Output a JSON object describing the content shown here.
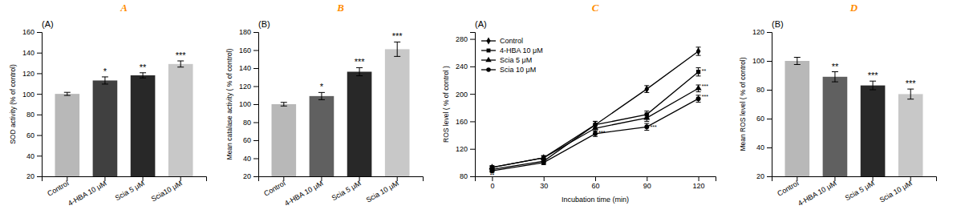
{
  "chart_data": [
    {
      "type": "bar",
      "title": "(A)",
      "ylabel": "SOD activity (% of control)",
      "categories": [
        "Control",
        "4-HBA 10 μM",
        "Scia 5 μM",
        "Scia10 μM"
      ],
      "values": [
        100,
        113,
        118,
        129
      ],
      "errors": [
        1.5,
        3.5,
        2.5,
        3.0
      ],
      "colors": [
        "#b8b8b8",
        "#404040",
        "#282828",
        "#c8c8c8"
      ],
      "ylim": [
        20,
        160
      ],
      "yticks": [
        20,
        40,
        60,
        80,
        100,
        120,
        140,
        160
      ],
      "grid": false,
      "annotations": [
        {
          "text": "A",
          "color": "#FF8C00"
        },
        {
          "text": "*",
          "x": "4-HBA 10 μM"
        },
        {
          "text": "**",
          "x": "Scia 5 μM"
        },
        {
          "text": "***",
          "x": "Scia10 μM"
        }
      ]
    },
    {
      "type": "bar",
      "title": "(B)",
      "ylabel": "Mean catalase activity ( % of control)",
      "categories": [
        "Control",
        "4-HBA 10 μM",
        "Scia 5 μM",
        "Scia 10 μM"
      ],
      "values": [
        100,
        109,
        136,
        161
      ],
      "errors": [
        2.0,
        4.0,
        4.5,
        8.0
      ],
      "colors": [
        "#b8b8b8",
        "#606060",
        "#282828",
        "#c8c8c8"
      ],
      "ylim": [
        20,
        180
      ],
      "yticks": [
        20,
        40,
        60,
        80,
        100,
        120,
        140,
        160,
        180
      ],
      "grid": false,
      "annotations": [
        {
          "text": "B",
          "color": "#FF8C00"
        },
        {
          "text": "*",
          "x": "4-HBA 10 μM"
        },
        {
          "text": "***",
          "x": "Scia 5 μM"
        },
        {
          "text": "***",
          "x": "Scia 10 μM"
        }
      ]
    },
    {
      "type": "line",
      "title": "(A)",
      "xlabel": "Incubation time (min)",
      "ylabel": "ROS level ( % of control )",
      "x": [
        0,
        30,
        60,
        90,
        120
      ],
      "xlim": [
        -10,
        130
      ],
      "xticks": [
        0,
        30,
        60,
        90,
        120
      ],
      "ylim": [
        80,
        290
      ],
      "yticks": [
        80,
        120,
        160,
        200,
        240,
        280
      ],
      "legend": "upper left",
      "grid": false,
      "series": [
        {
          "name": "Control",
          "color": "#000000",
          "marker": "diamond",
          "values": [
            90,
            102,
            155,
            207,
            262
          ],
          "errors": [
            2,
            3,
            5,
            5,
            6
          ]
        },
        {
          "name": "4-HBA 10 μM",
          "color": "#000000",
          "marker": "square",
          "values": [
            93,
            107,
            155,
            170,
            232
          ],
          "errors": [
            2,
            3,
            5,
            5,
            6
          ]
        },
        {
          "name": "Scia 5 μM",
          "color": "#000000",
          "marker": "triangle",
          "values": [
            93,
            107,
            150,
            165,
            208
          ],
          "errors": [
            2,
            3,
            4,
            5,
            5
          ]
        },
        {
          "name": "Scia 10 μM",
          "color": "#000000",
          "marker": "circle",
          "values": [
            88,
            100,
            142,
            152,
            193
          ],
          "errors": [
            2,
            3,
            4,
            5,
            5
          ]
        }
      ],
      "annotations": [
        {
          "text": "C",
          "color": "#FF8C00"
        },
        {
          "text": "**",
          "x": 0,
          "y": 88
        },
        {
          "text": "**",
          "x": 0,
          "y": 84
        },
        {
          "text": "***",
          "x": 92,
          "y": 151
        },
        {
          "text": "**",
          "x": 122,
          "y": 233
        },
        {
          "text": "***",
          "x": 122,
          "y": 210
        },
        {
          "text": "***",
          "x": 122,
          "y": 195
        },
        {
          "text": "***",
          "x": 62,
          "y": 143
        }
      ]
    },
    {
      "type": "bar",
      "title": "(B)",
      "ylabel": "Mean ROS level ( % of control)",
      "categories": [
        "Control",
        "4-HBA 10 μM",
        "Scia 5 μM",
        "Scia 10 μM"
      ],
      "values": [
        100,
        89,
        83,
        77
      ],
      "errors": [
        2.5,
        3.5,
        3.0,
        3.5
      ],
      "colors": [
        "#b8b8b8",
        "#606060",
        "#282828",
        "#c8c8c8"
      ],
      "ylim": [
        20,
        120
      ],
      "yticks": [
        20,
        40,
        60,
        80,
        100,
        120
      ],
      "grid": false,
      "annotations": [
        {
          "text": "D",
          "color": "#FF8C00"
        },
        {
          "text": "**",
          "x": "4-HBA 10 μM"
        },
        {
          "text": "***",
          "x": "Scia 5 μM"
        },
        {
          "text": "***",
          "x": "Scia 10 μM"
        }
      ]
    }
  ]
}
